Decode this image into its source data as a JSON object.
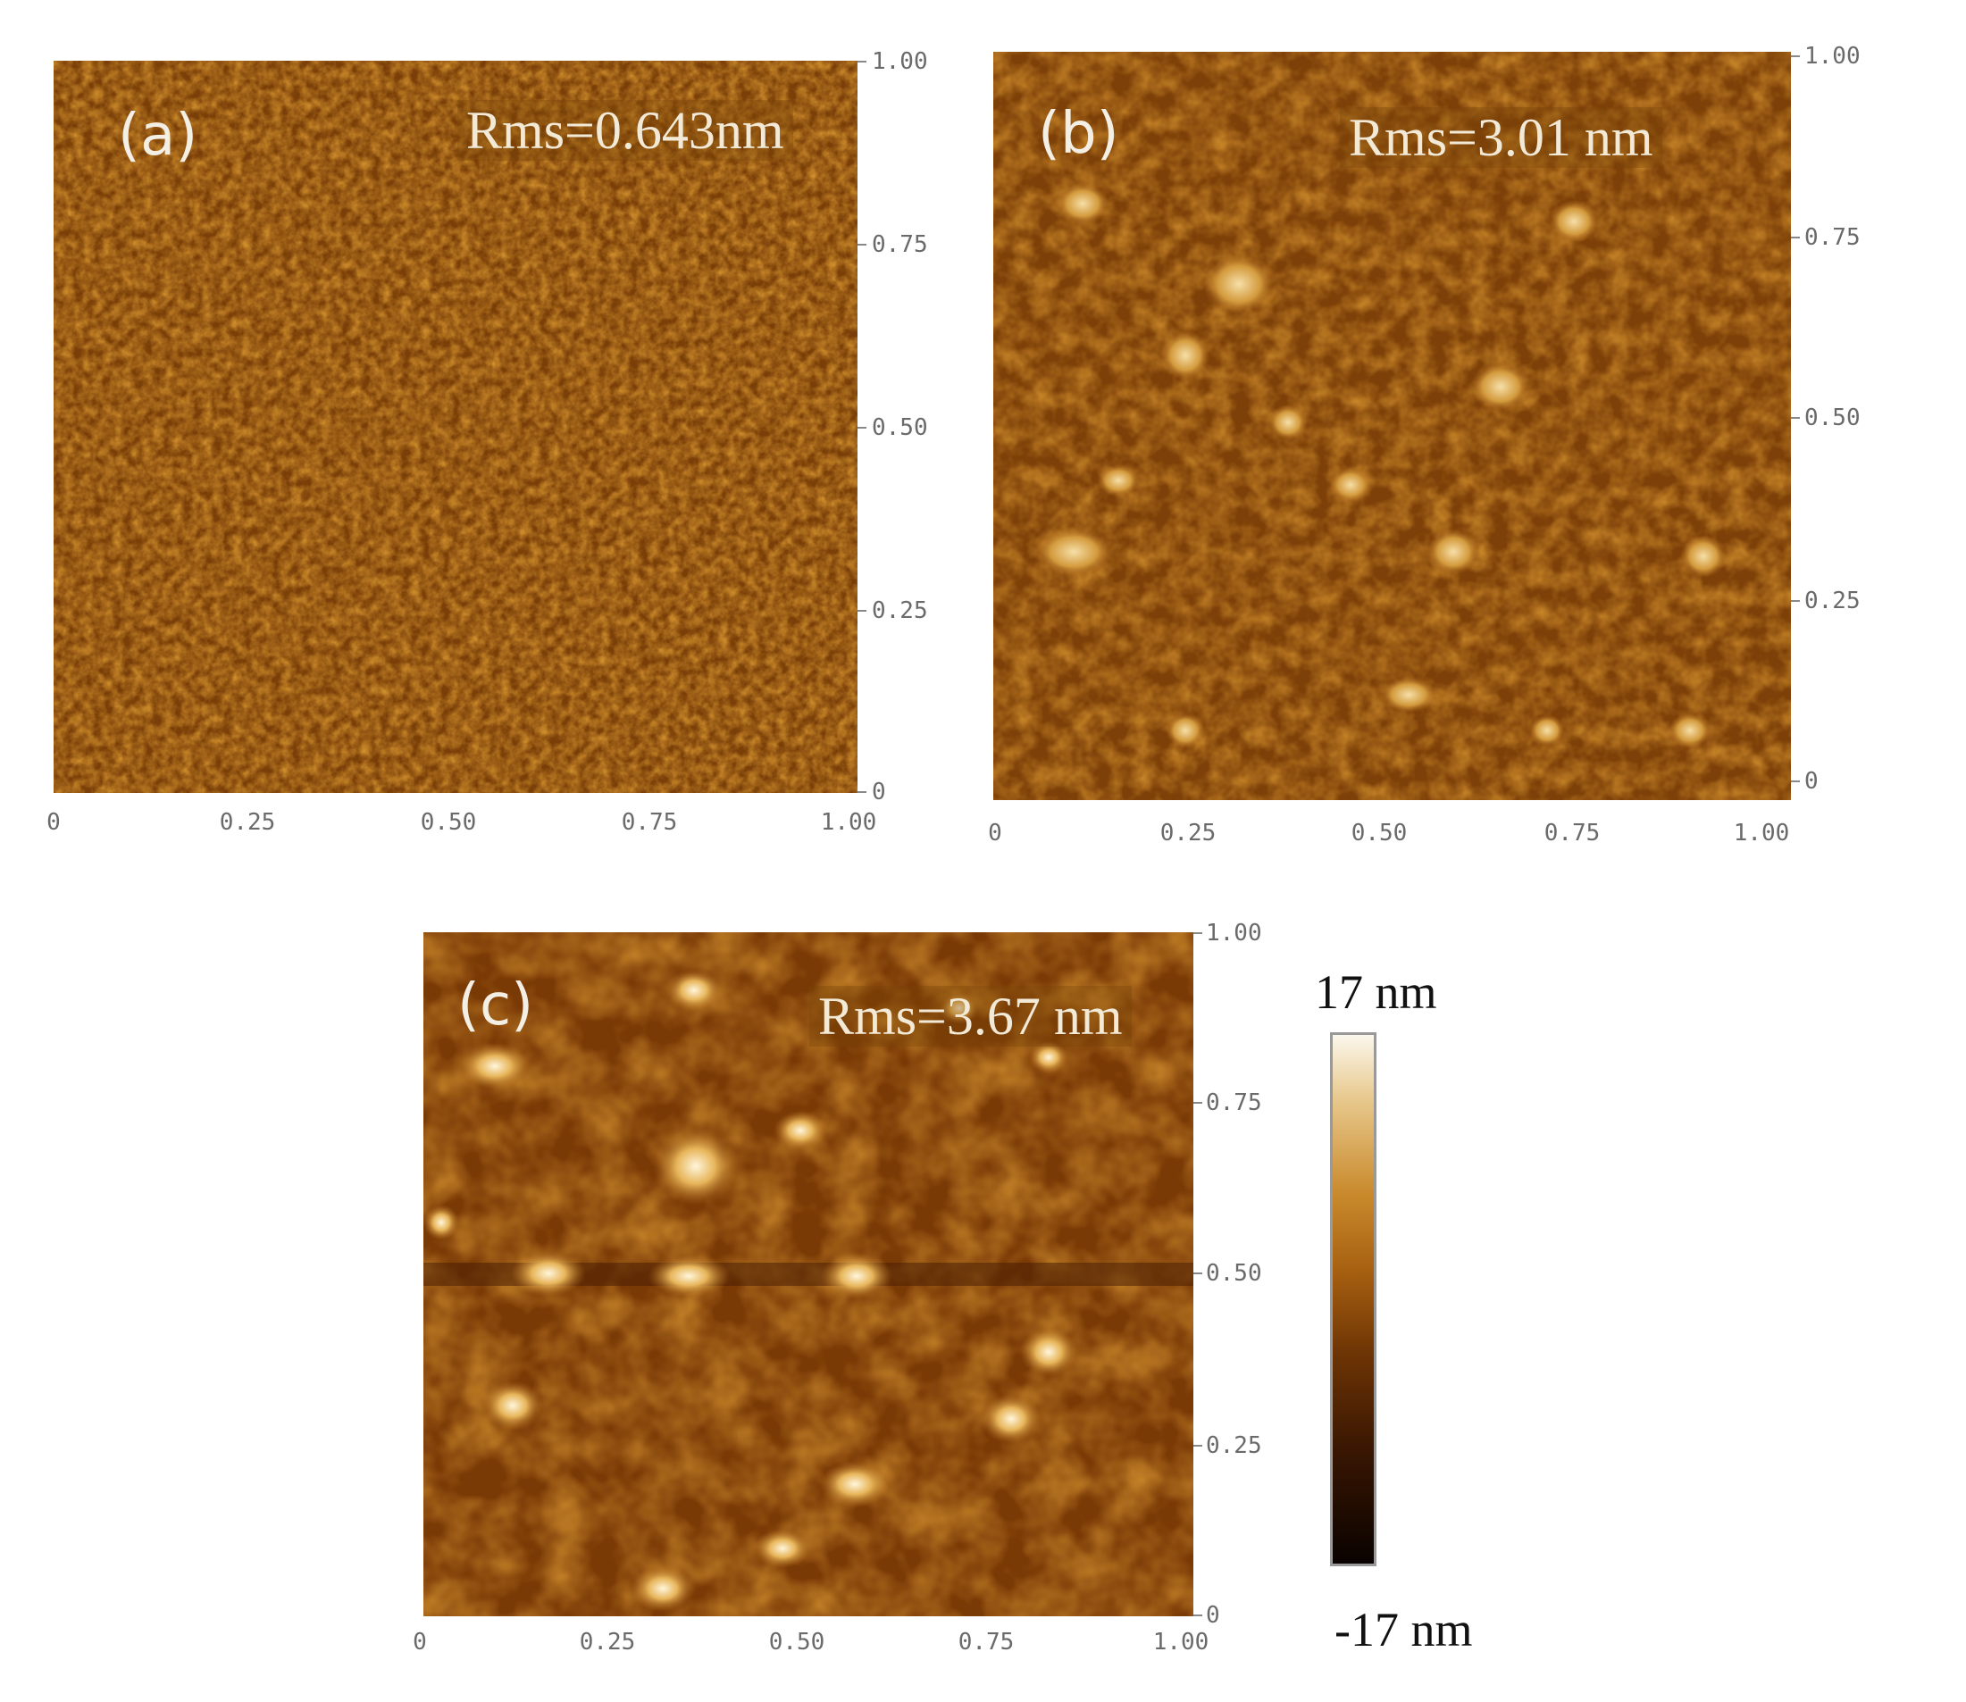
{
  "panels": [
    {
      "id": "a",
      "label": "(a)",
      "rms": "Rms=0.643nm",
      "x_ticks": [
        "0",
        "0.25",
        "0.50",
        "0.75",
        "1.00"
      ],
      "y_ticks": [
        "1.00",
        "0.75",
        "0.50",
        "0.25",
        "0"
      ]
    },
    {
      "id": "b",
      "label": "(b)",
      "rms": "Rms=3.01 nm",
      "x_ticks": [
        "0",
        "0.25",
        "0.50",
        "0.75",
        "1.00"
      ],
      "y_ticks": [
        "1.00",
        "0.75",
        "0.50",
        "0.25",
        "0"
      ]
    },
    {
      "id": "c",
      "label": "(c)",
      "rms": "Rms=3.67 nm",
      "x_ticks": [
        "0",
        "0.25",
        "0.50",
        "0.75",
        "1.00"
      ],
      "y_ticks": [
        "1.00",
        "0.75",
        "0.50",
        "0.25",
        "0"
      ]
    }
  ],
  "colorbar": {
    "max_label": "17 nm",
    "min_label": "-17 nm"
  },
  "colors": {
    "dark": "#3b1a03",
    "mid": "#a8621a",
    "bright": "#f3d9a0"
  }
}
